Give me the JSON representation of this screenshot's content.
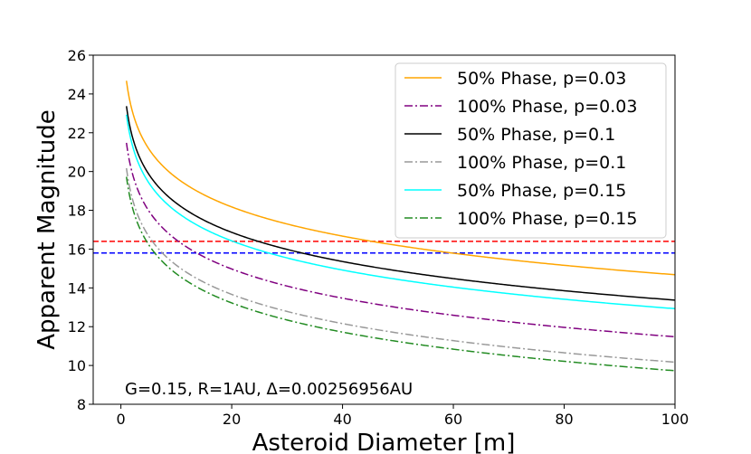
{
  "chart_data": {
    "type": "line",
    "xlabel": "Asteroid Diameter [m]",
    "ylabel": "Apparent Magnitude",
    "xlim": [
      -5,
      100
    ],
    "ylim": [
      8,
      26
    ],
    "xticks": [
      0,
      20,
      40,
      60,
      80,
      100
    ],
    "yticks": [
      8,
      10,
      12,
      14,
      16,
      18,
      20,
      22,
      24,
      26
    ],
    "grid": false,
    "legend_position": "top-right",
    "annotation": "G=0.15, R=1AU, Δ=0.00256956AU",
    "series": [
      {
        "name": "50% Phase, p=0.03",
        "color": "#ffa500",
        "dash": "solid",
        "curve": {
          "m1": 24.68,
          "slope": 5
        }
      },
      {
        "name": "100% Phase, p=0.03",
        "color": "#800080",
        "dash": "dashdot",
        "curve": {
          "m1": 21.48,
          "slope": 5
        }
      },
      {
        "name": "50% Phase, p=0.1",
        "color": "#000000",
        "dash": "solid",
        "curve": {
          "m1": 23.37,
          "slope": 5
        }
      },
      {
        "name": "100% Phase, p=0.1",
        "color": "#999999",
        "dash": "dashdot",
        "curve": {
          "m1": 20.17,
          "slope": 5
        }
      },
      {
        "name": "50% Phase, p=0.15",
        "color": "#00ffff",
        "dash": "solid",
        "curve": {
          "m1": 22.93,
          "slope": 5
        }
      },
      {
        "name": "100% Phase, p=0.15",
        "color": "#228b22",
        "dash": "dashdot",
        "curve": {
          "m1": 19.73,
          "slope": 5
        }
      }
    ],
    "x_range": [
      1,
      100
    ],
    "reference_lines": [
      {
        "y": 16.4,
        "color": "#ff0000",
        "dash": "dashed"
      },
      {
        "y": 15.8,
        "color": "#0000ff",
        "dash": "dashed"
      }
    ]
  }
}
